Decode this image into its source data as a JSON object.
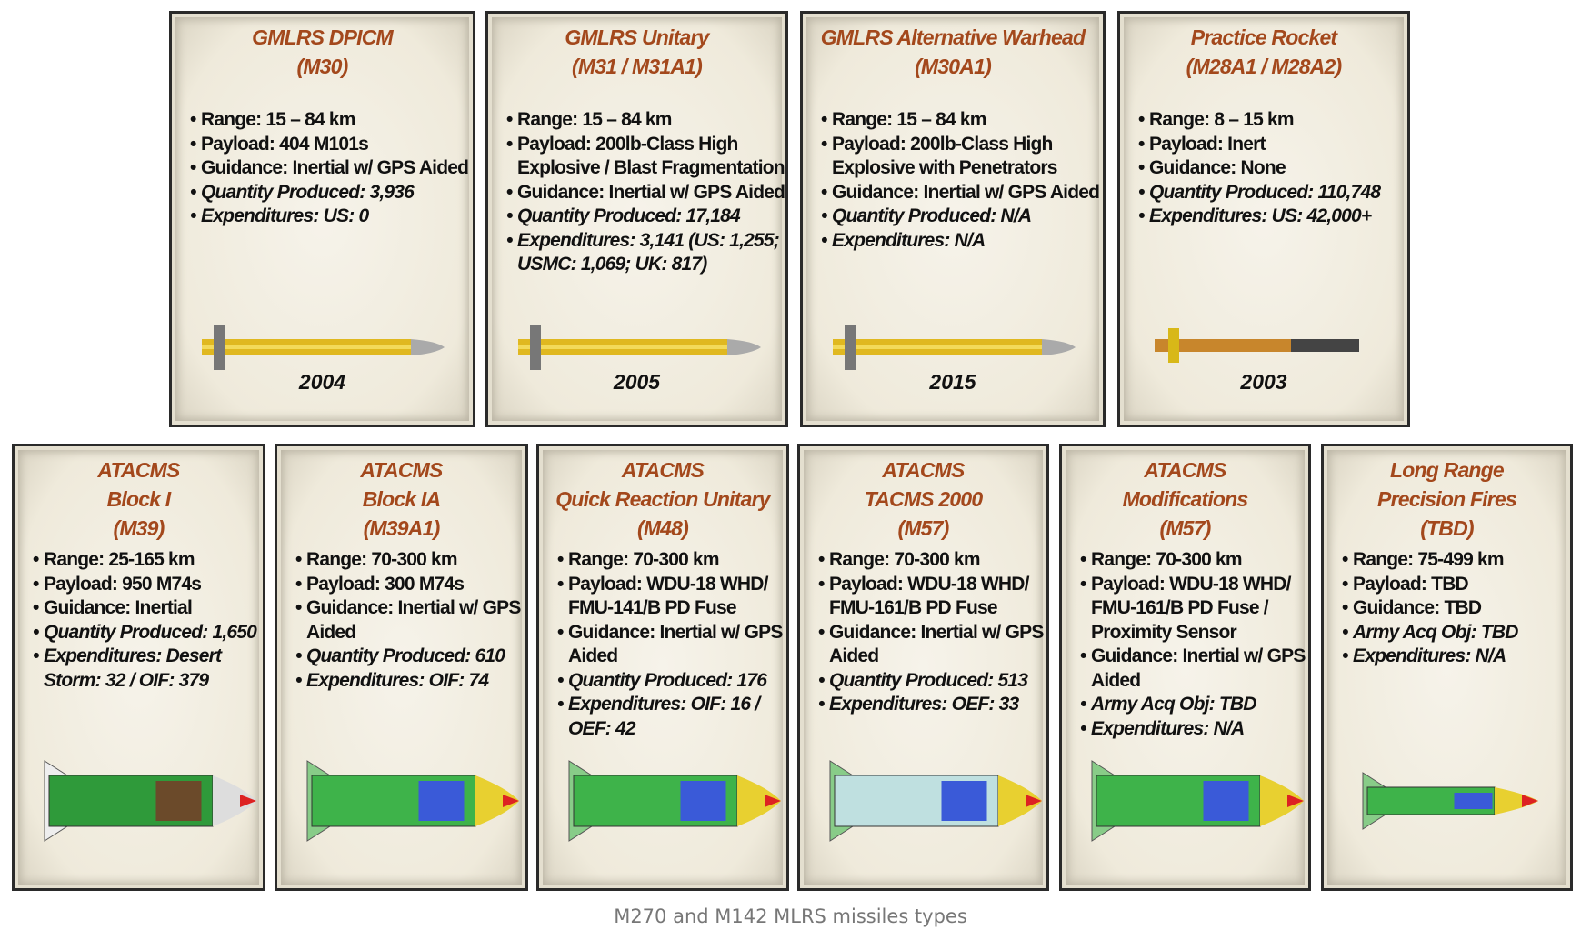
{
  "cards_top": [
    {
      "title": [
        "GMLRS DPICM",
        "(M30)"
      ],
      "items": [
        {
          "t": "Range: 15 – 84 km"
        },
        {
          "t": "Payload: 404 M101s"
        },
        {
          "t": "Guidance: Inertial w/ GPS Aided"
        },
        {
          "t": "Quantity Produced: 3,936",
          "i": true
        },
        {
          "t": "Expenditures: US: 0",
          "i": true
        }
      ],
      "year": "2004",
      "icon": "gmlrs-rocket-icon"
    },
    {
      "title": [
        "GMLRS Unitary",
        "(M31 / M31A1)"
      ],
      "items": [
        {
          "t": "Range: 15 – 84 km"
        },
        {
          "t": "Payload: 200lb-Class High Explosive / Blast Fragmentation"
        },
        {
          "t": "Guidance: Inertial w/ GPS Aided"
        },
        {
          "t": "Quantity Produced: 17,184",
          "i": true
        },
        {
          "t": "Expenditures: 3,141 (US: 1,255; USMC: 1,069; UK: 817)",
          "i": true
        }
      ],
      "year": "2005",
      "icon": "gmlrs-rocket-icon"
    },
    {
      "title": [
        "GMLRS Alternative Warhead",
        "(M30A1)"
      ],
      "items": [
        {
          "t": "Range: 15 – 84 km"
        },
        {
          "t": "Payload: 200lb-Class High Explosive with Penetrators"
        },
        {
          "t": "Guidance: Inertial w/ GPS Aided"
        },
        {
          "t": "Quantity Produced: N/A",
          "i": true
        },
        {
          "t": "Expenditures: N/A",
          "i": true
        }
      ],
      "year": "2015",
      "icon": "gmlrs-rocket-icon"
    },
    {
      "title": [
        "Practice Rocket",
        "(M28A1 / M28A2)"
      ],
      "items": [
        {
          "t": "Range: 8 – 15 km"
        },
        {
          "t": "Payload: Inert"
        },
        {
          "t": "Guidance: None"
        },
        {
          "t": "Quantity Produced: 110,748",
          "i": true
        },
        {
          "t": "Expenditures: US: 42,000+",
          "i": true
        }
      ],
      "year": "2003",
      "icon": "practice-rocket-icon"
    }
  ],
  "cards_bottom": [
    {
      "title": [
        "ATACMS",
        "Block I",
        "(M39)"
      ],
      "items": [
        {
          "t": "Range: 25-165 km"
        },
        {
          "t": "Payload: 950 M74s"
        },
        {
          "t": "Guidance: Inertial"
        },
        {
          "t": "Quantity Produced: 1,650",
          "i": true
        },
        {
          "t": "Expenditures: Desert Storm: 32 / OIF: 379",
          "i": true
        }
      ],
      "icon": "atacms-missile-icon"
    },
    {
      "title": [
        "ATACMS",
        "Block IA",
        "(M39A1)"
      ],
      "items": [
        {
          "t": "Range: 70-300 km"
        },
        {
          "t": "Payload: 300 M74s"
        },
        {
          "t": "Guidance: Inertial w/ GPS Aided"
        },
        {
          "t": "Quantity Produced: 610",
          "i": true
        },
        {
          "t": "Expenditures: OIF: 74",
          "i": true
        }
      ],
      "icon": "atacms-missile-icon"
    },
    {
      "title": [
        "ATACMS",
        "Quick Reaction Unitary",
        "(M48)"
      ],
      "items": [
        {
          "t": "Range: 70-300 km"
        },
        {
          "t": "Payload: WDU-18 WHD/ FMU-141/B PD Fuse"
        },
        {
          "t": "Guidance: Inertial w/ GPS Aided"
        },
        {
          "t": "Quantity Produced: 176",
          "i": true
        },
        {
          "t": "Expenditures: OIF: 16 / OEF: 42",
          "i": true
        }
      ],
      "icon": "atacms-missile-icon"
    },
    {
      "title": [
        "ATACMS",
        "TACMS 2000",
        "(M57)"
      ],
      "items": [
        {
          "t": "Range: 70-300 km"
        },
        {
          "t": "Payload: WDU-18 WHD/ FMU-161/B PD Fuse"
        },
        {
          "t": "Guidance: Inertial w/ GPS Aided"
        },
        {
          "t": "Quantity Produced: 513",
          "i": true
        },
        {
          "t": "Expenditures: OEF: 33",
          "i": true
        }
      ],
      "icon": "atacms-missile-icon"
    },
    {
      "title": [
        "ATACMS",
        "Modifications",
        "(M57)"
      ],
      "items": [
        {
          "t": "Range: 70-300 km"
        },
        {
          "t": "Payload: WDU-18 WHD/ FMU-161/B PD Fuse / Proximity Sensor"
        },
        {
          "t": "Guidance: Inertial w/ GPS Aided"
        },
        {
          "t": "Army Acq Obj: TBD",
          "i": true
        },
        {
          "t": "Expenditures:  N/A",
          "i": true
        }
      ],
      "icon": "atacms-missile-icon"
    },
    {
      "title": [
        "Long Range",
        "Precision Fires",
        "(TBD)"
      ],
      "items": [
        {
          "t": "Range: 75-499 km"
        },
        {
          "t": "Payload: TBD"
        },
        {
          "t": "Guidance: TBD"
        },
        {
          "t": "Army Acq Obj: TBD",
          "i": true
        },
        {
          "t": "Expenditures: N/A",
          "i": true
        }
      ],
      "icon": "prsm-missile-icon"
    }
  ],
  "caption": "M270 and M142 MLRS missiles types",
  "colors": {
    "title": "#a3481c",
    "card_bg": "#f3efe3",
    "gmlrs_body": "#e0b820",
    "atacms_body": "#4caf3a"
  }
}
